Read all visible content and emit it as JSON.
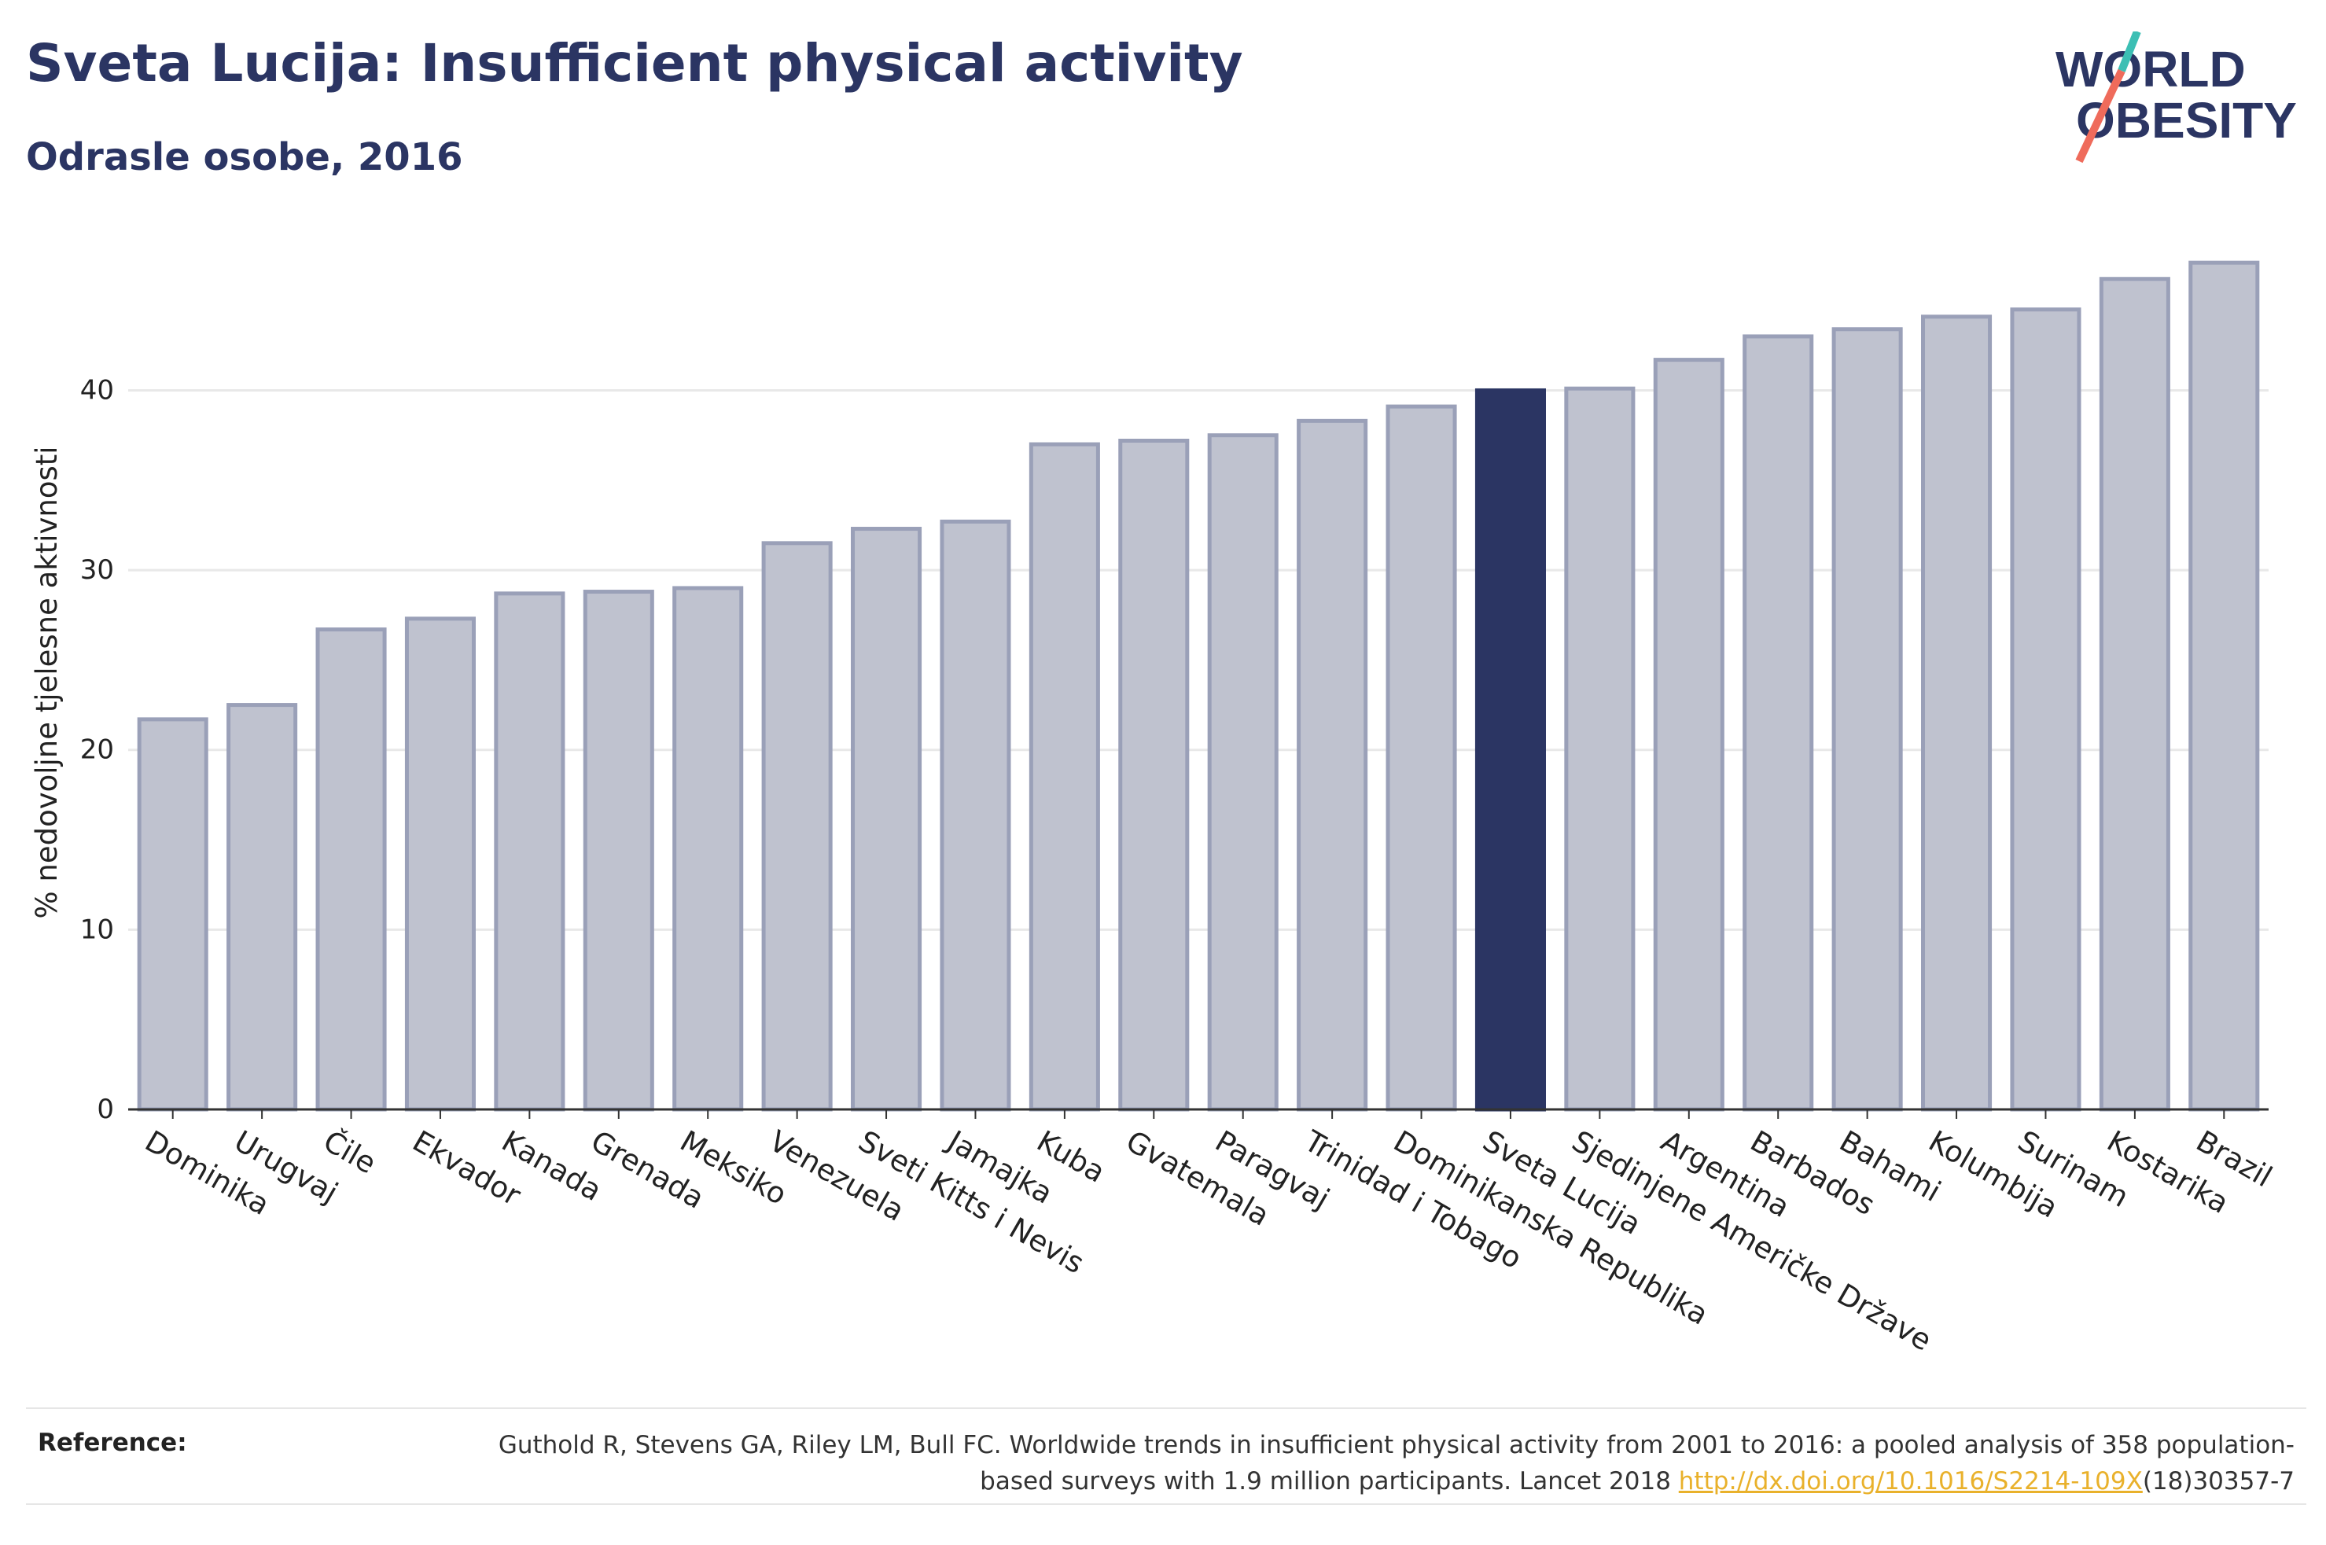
{
  "header": {
    "title": "Sveta Lucija: Insufficient physical activity",
    "subtitle": "Odrasle osobe, 2016"
  },
  "logo": {
    "line1": "WORLD",
    "line2": "OBESITY",
    "accent_teal": "#3cbfb4",
    "accent_coral": "#ef6b5b"
  },
  "colors": {
    "bar_default": "#bfc2cf",
    "bar_default_stroke": "#9aa0b8",
    "bar_highlight": "#2b3563",
    "grid": "#e8e8e8",
    "axis": "#333333",
    "text": "#222222"
  },
  "chart_data": {
    "type": "bar",
    "title": "Sveta Lucija: Insufficient physical activity",
    "subtitle": "Odrasle osobe, 2016",
    "xlabel": "",
    "ylabel": "% nedovoljne tjelesne aktivnosti",
    "ylim": [
      0,
      47.5
    ],
    "yticks": [
      0,
      10,
      20,
      30,
      40
    ],
    "grid": true,
    "highlight": "Sveta Lucija",
    "categories": [
      "Dominika",
      "Urugvaj",
      "Čile",
      "Ekvador",
      "Kanada",
      "Grenada",
      "Meksiko",
      "Venezuela",
      "Sveti Kitts i Nevis",
      "Jamajka",
      "Kuba",
      "Gvatemala",
      "Paragvaj",
      "Trinidad i Tobago",
      "Dominikanska Republika",
      "Sveta Lucija",
      "Sjedinjene Američke Države",
      "Argentina",
      "Barbados",
      "Bahami",
      "Kolumbija",
      "Surinam",
      "Kostarika",
      "Brazil"
    ],
    "values": [
      21.7,
      22.5,
      26.7,
      27.3,
      28.7,
      28.8,
      29.0,
      31.5,
      32.3,
      32.7,
      37.0,
      37.2,
      37.5,
      38.3,
      39.1,
      40.0,
      40.1,
      41.7,
      43.0,
      43.4,
      44.1,
      44.5,
      46.2,
      47.1
    ]
  },
  "reference": {
    "label": "Reference:",
    "text_before": "Guthold R, Stevens GA, Riley LM, Bull FC. Worldwide trends in insufficient physical activity from 2001 to 2016: a pooled analysis of 358 population-based surveys with 1.9 million participants. Lancet 2018 ",
    "link": "http://dx.doi.org/10.1016/S2214-109X",
    "text_after": "(18)30357-7"
  }
}
